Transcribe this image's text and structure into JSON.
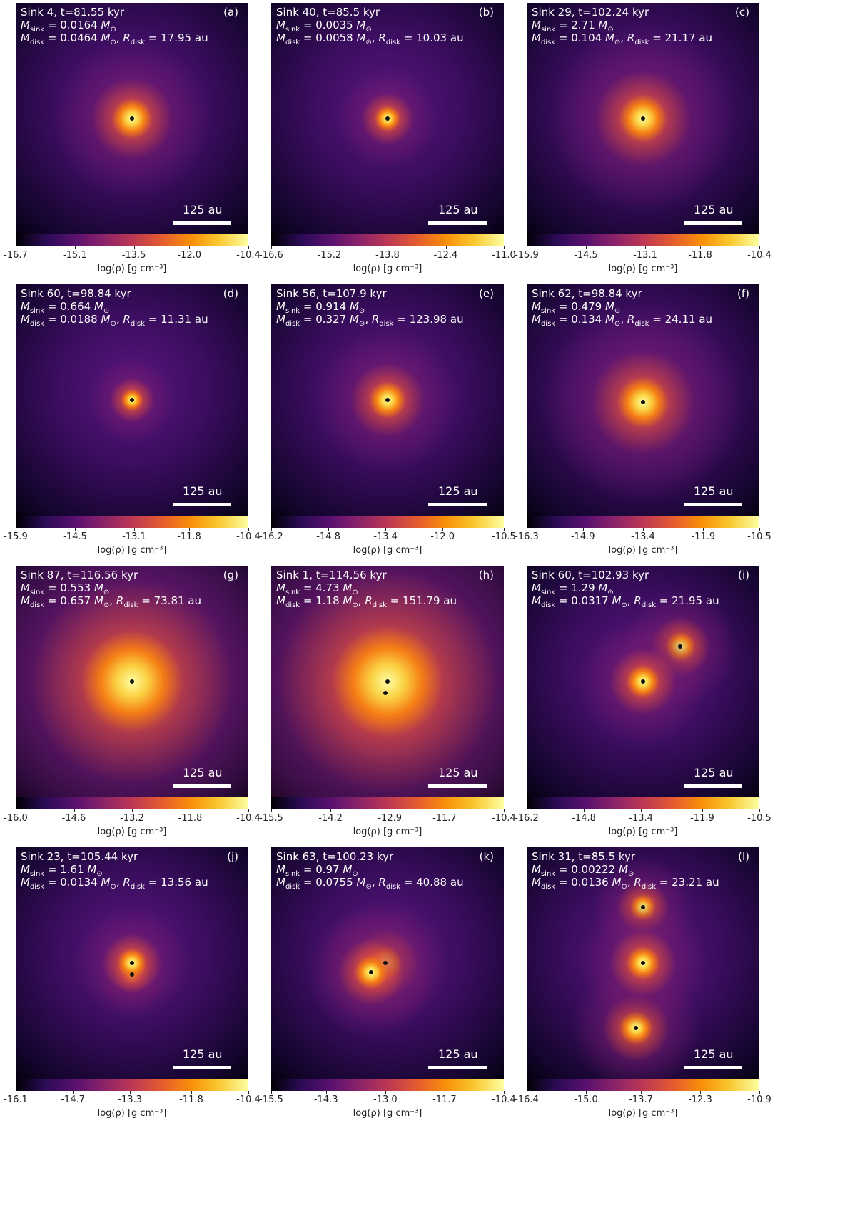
{
  "notation": {
    "m": "M",
    "r": "R",
    "sink": "sink",
    "disk": "disk",
    "sun": "⊙",
    "eq": "=",
    "sep": ",",
    "au": "au"
  },
  "scale_bar": "125 au",
  "colorbar_label": "log(ρ) [g cm⁻³]",
  "panels": [
    {
      "title": "Sink 4, t=81.55 kyr",
      "label": "(a)",
      "m_sink": 0.0164,
      "m_disk": 0.0464,
      "r_disk": 17.95,
      "colorbar": {
        "lim": [
          -16.7,
          -10.4
        ],
        "ticks": [
          -16.7,
          -15.1,
          -13.5,
          {
            "value": -12,
            "label": "-12.0"
          },
          -10.4
        ]
      }
    },
    {
      "title": "Sink 40, t=85.5 kyr",
      "label": "(b)",
      "m_sink": 0.0035,
      "m_disk": 0.0058,
      "r_disk": 10.03,
      "colorbar": {
        "lim": [
          -16.6,
          -11
        ],
        "ticks": [
          -16.6,
          -15.2,
          -13.8,
          -12.4,
          {
            "value": -11,
            "label": "-11.0"
          }
        ]
      }
    },
    {
      "title": "Sink 29, t=102.24 kyr",
      "label": "(c)",
      "m_sink": 2.71,
      "m_disk": 0.104,
      "r_disk": 21.17,
      "colorbar": {
        "lim": [
          -15.9,
          -10.4
        ],
        "ticks": [
          -15.9,
          -14.5,
          -13.1,
          -11.8,
          -10.4
        ]
      }
    },
    {
      "title": "Sink 60, t=98.84 kyr",
      "label": "(d)",
      "m_sink": 0.664,
      "m_disk": 0.0188,
      "r_disk": 11.31,
      "colorbar": {
        "lim": [
          -15.9,
          -10.4
        ],
        "ticks": [
          -15.9,
          -14.5,
          -13.1,
          -11.8,
          -10.4
        ]
      }
    },
    {
      "title": "Sink 56, t=107.9 kyr",
      "label": "(e)",
      "m_sink": 0.914,
      "m_disk": 0.327,
      "r_disk": 123.98,
      "colorbar": {
        "lim": [
          -16.2,
          -10.5
        ],
        "ticks": [
          -16.2,
          -14.8,
          -13.4,
          {
            "value": -12,
            "label": "-12.0"
          },
          -10.5
        ]
      }
    },
    {
      "title": "Sink 62, t=98.84 kyr",
      "label": "(f)",
      "m_sink": 0.479,
      "m_disk": 0.134,
      "r_disk": 24.11,
      "colorbar": {
        "lim": [
          -16.3,
          -10.5
        ],
        "ticks": [
          -16.3,
          -14.9,
          -13.4,
          -11.9,
          -10.5
        ]
      }
    },
    {
      "title": "Sink 87, t=116.56 kyr",
      "label": "(g)",
      "m_sink": 0.553,
      "m_disk": 0.657,
      "r_disk": 73.81,
      "colorbar": {
        "lim": [
          -16,
          -10.4
        ],
        "ticks": [
          {
            "value": -16,
            "label": "-16.0"
          },
          -14.6,
          -13.2,
          -11.8,
          -10.4
        ]
      }
    },
    {
      "title": "Sink 1, t=114.56 kyr",
      "label": "(h)",
      "m_sink": 4.73,
      "m_disk": 1.18,
      "r_disk": 151.79,
      "colorbar": {
        "lim": [
          -15.5,
          -10.4
        ],
        "ticks": [
          -15.5,
          -14.2,
          -12.9,
          -11.7,
          -10.4
        ]
      }
    },
    {
      "title": "Sink 60, t=102.93 kyr",
      "label": "(i)",
      "m_sink": 1.29,
      "m_disk": 0.0317,
      "r_disk": 21.95,
      "colorbar": {
        "lim": [
          -16.2,
          -10.5
        ],
        "ticks": [
          -16.2,
          -14.8,
          -13.4,
          -11.9,
          -10.5
        ]
      }
    },
    {
      "title": "Sink 23, t=105.44 kyr",
      "label": "(j)",
      "m_sink": 1.61,
      "m_disk": 0.0134,
      "r_disk": 13.56,
      "colorbar": {
        "lim": [
          -16.1,
          -10.4
        ],
        "ticks": [
          -16.1,
          -14.7,
          -13.3,
          -11.8,
          -10.4
        ]
      }
    },
    {
      "title": "Sink 63, t=100.23 kyr",
      "label": "(k)",
      "m_sink": 0.97,
      "m_disk": 0.0755,
      "r_disk": 40.88,
      "colorbar": {
        "lim": [
          -15.5,
          -10.4
        ],
        "ticks": [
          -15.5,
          -14.3,
          {
            "value": -13,
            "label": "-13.0"
          },
          -11.7,
          -10.4
        ]
      }
    },
    {
      "title": "Sink 31, t=85.5 kyr",
      "label": "(l)",
      "m_sink": 0.00222,
      "m_disk": 0.0136,
      "r_disk": 23.21,
      "colorbar": {
        "lim": [
          -16.4,
          -10.9
        ],
        "ticks": [
          -16.4,
          {
            "value": -15,
            "label": "-15.0"
          },
          -13.7,
          -12.3,
          -10.9
        ]
      }
    }
  ]
}
